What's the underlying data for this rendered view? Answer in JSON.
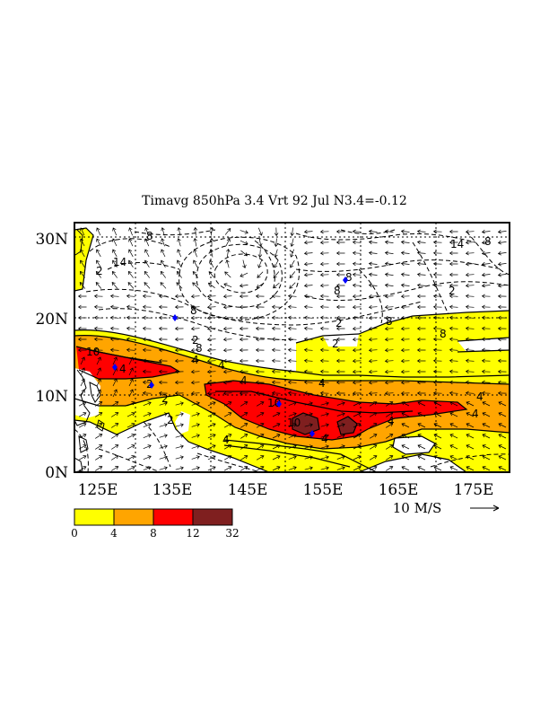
{
  "title": "Timavg 850hPa 3.4 Vrt 92 Jul N3.4=-0.12",
  "lat_labels": [
    "30N",
    "20N",
    "10N",
    "0N"
  ],
  "lon_labels": [
    "125E",
    "135E",
    "145E",
    "155E",
    "165E",
    "175E"
  ],
  "vector_scale_label": "10 M/S",
  "colors": {
    "level1": "#ffff00",
    "level2": "#ffa500",
    "level3": "#ff0000",
    "level4": "#7f1f1f",
    "storm_markers": "#0000ff"
  },
  "colorbar": {
    "ticks": [
      "0",
      "4",
      "8",
      "12",
      "32"
    ]
  },
  "contour_labels": [
    "8",
    "14",
    "2",
    "8",
    "8",
    "2",
    "2",
    "2",
    "8",
    "14",
    "8",
    "8",
    "2",
    "8",
    "4",
    "4",
    "4",
    "4",
    "4",
    "10",
    "2",
    "8",
    "2",
    "4",
    "4",
    "4",
    "10",
    "2",
    "4",
    "10",
    "4"
  ]
}
